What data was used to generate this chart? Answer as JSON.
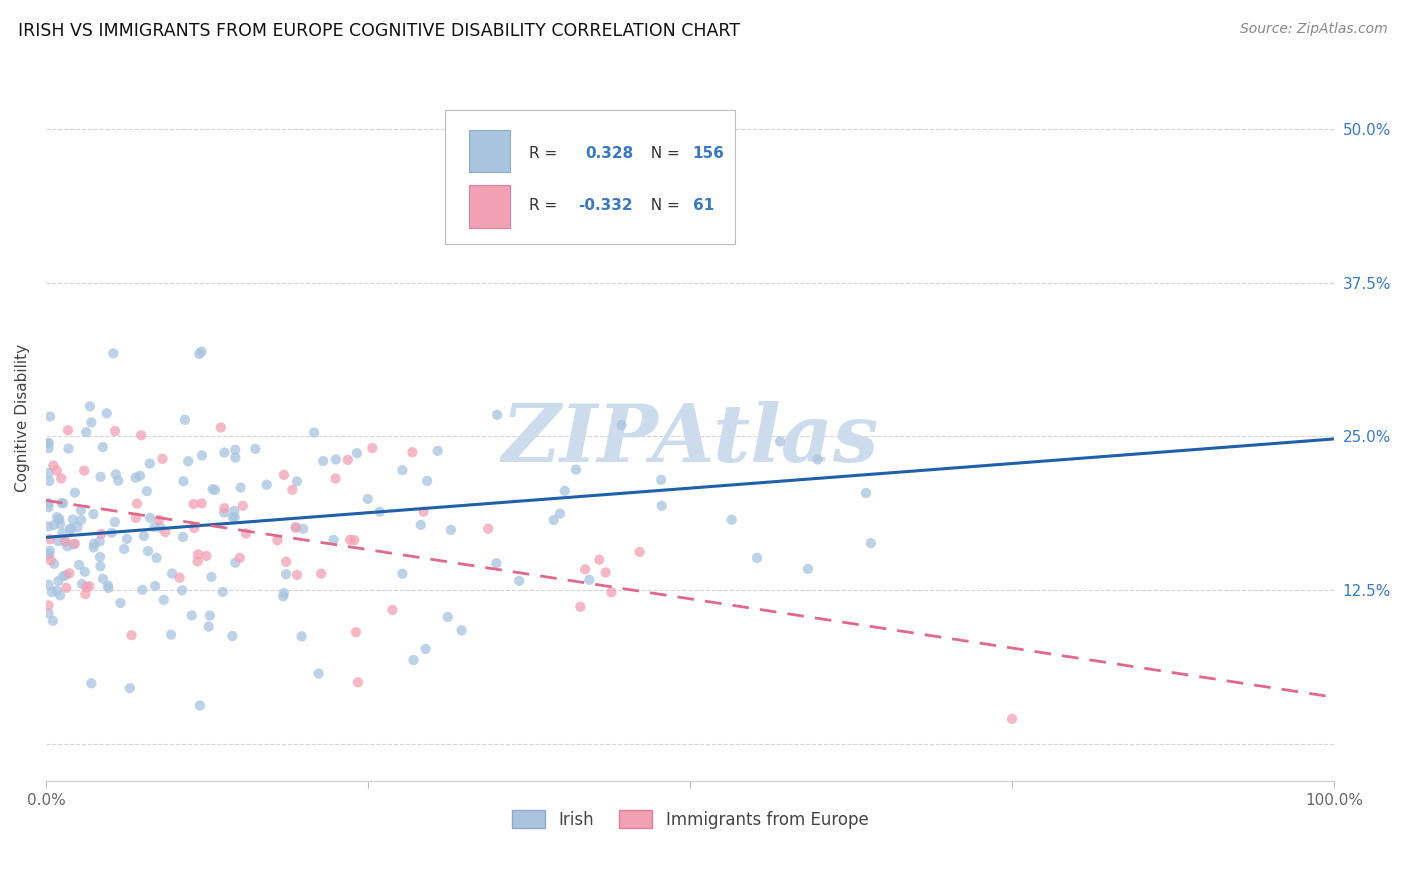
{
  "title": "IRISH VS IMMIGRANTS FROM EUROPE COGNITIVE DISABILITY CORRELATION CHART",
  "source": "Source: ZipAtlas.com",
  "ylabel": "Cognitive Disability",
  "xlim": [
    0.0,
    1.0
  ],
  "ylim": [
    -0.03,
    0.56
  ],
  "ytick_positions": [
    0.0,
    0.125,
    0.25,
    0.375,
    0.5
  ],
  "ytick_labels": [
    "",
    "12.5%",
    "25.0%",
    "37.5%",
    "50.0%"
  ],
  "xtick_positions": [
    0.0,
    0.25,
    0.5,
    0.75,
    1.0
  ],
  "xtick_labels_show": [
    "0.0%",
    "",
    "",
    "",
    "100.0%"
  ],
  "legend_irish_r": "0.328",
  "legend_irish_n": "156",
  "legend_immig_r": "-0.332",
  "legend_immig_n": "61",
  "irish_color": "#a8c4df",
  "immig_color": "#f2a0b4",
  "irish_line_color": "#2060a8",
  "immig_line_color": "#e06888",
  "background_color": "#ffffff",
  "watermark_color": "#ccdcec",
  "irish_line_start_y": 0.168,
  "irish_line_end_y": 0.248,
  "immig_line_start_y": 0.198,
  "immig_line_end_y": 0.038
}
